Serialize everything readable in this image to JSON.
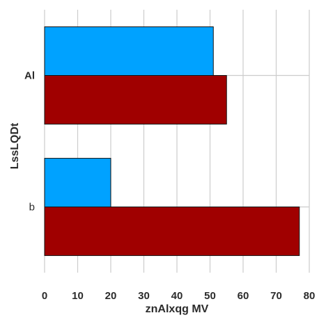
{
  "chart_data": {
    "type": "bar",
    "orientation": "horizontal",
    "categories": [
      "Al",
      "b"
    ],
    "series": [
      {
        "values": [
          51,
          20
        ],
        "color": "#00a2ff"
      },
      {
        "values": [
          55,
          77
        ],
        "color": "#a00000"
      }
    ],
    "title": "",
    "xlabel": "znAlxqg MV",
    "ylabel": "LssLQDt",
    "xlim": [
      0,
      80
    ],
    "xticks": [
      0,
      10,
      20,
      30,
      40,
      50,
      60,
      70,
      80
    ],
    "grid": true,
    "legend": "none"
  }
}
